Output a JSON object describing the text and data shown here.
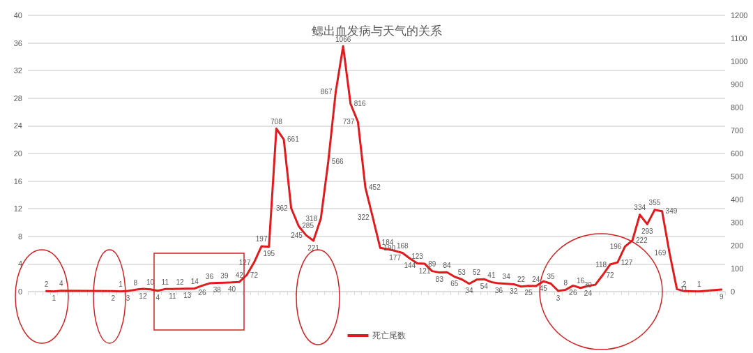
{
  "chart_data": {
    "type": "line",
    "title": "鳃出血发病与天气的关系",
    "categories": [
      null,
      null,
      null,
      null,
      null,
      null,
      null,
      null,
      null,
      null,
      null,
      null,
      null,
      null,
      null,
      null,
      null,
      null,
      null,
      null,
      null,
      null,
      null,
      null,
      null,
      null,
      null,
      null,
      null,
      null,
      null,
      null,
      null,
      null,
      null,
      null,
      null,
      null,
      null,
      null,
      null,
      null,
      null,
      null,
      null,
      null,
      null,
      null,
      null,
      null,
      null,
      null,
      null,
      null,
      null,
      null,
      null,
      null,
      null,
      null,
      null,
      null,
      null,
      null,
      null,
      null,
      null,
      null,
      null,
      null,
      null,
      null,
      null,
      null,
      null,
      null,
      null,
      null,
      null,
      null,
      null,
      null,
      null,
      null,
      null,
      null,
      null,
      null,
      null,
      null,
      null,
      null,
      null,
      null
    ],
    "series": [
      {
        "name": "死亡尾数",
        "color": "#e31a1c",
        "axis": "y2",
        "values": [
          null,
          null,
          2,
          1,
          4,
          null,
          null,
          null,
          null,
          null,
          null,
          2,
          1,
          3,
          8,
          12,
          10,
          4,
          11,
          11,
          12,
          13,
          14,
          26,
          36,
          38,
          39,
          40,
          42,
          72,
          127,
          197,
          195,
          708,
          661,
          362,
          285,
          245,
          221,
          318,
          566,
          867,
          1066,
          816,
          737,
          452,
          322,
          190,
          184,
          177,
          168,
          144,
          123,
          121,
          89,
          83,
          84,
          65,
          53,
          34,
          52,
          54,
          41,
          36,
          34,
          32,
          22,
          25,
          24,
          45,
          35,
          3,
          8,
          26,
          16,
          24,
          30,
          72,
          118,
          127,
          196,
          222,
          334,
          293,
          355,
          349,
          169,
          11,
          2,
          null,
          1,
          null,
          null,
          9
        ]
      }
    ],
    "ylim": [
      0,
      40
    ],
    "yticks": [
      0,
      4,
      8,
      12,
      16,
      20,
      24,
      28,
      32,
      36,
      40
    ],
    "y2lim": [
      0,
      1200
    ],
    "y2ticks": [
      0,
      100,
      200,
      300,
      400,
      500,
      600,
      700,
      800,
      900,
      1000,
      1100,
      1200
    ],
    "grid": "y",
    "legend": "bottom",
    "marker": "none",
    "line_style": "solid",
    "data_labels": true
  }
}
